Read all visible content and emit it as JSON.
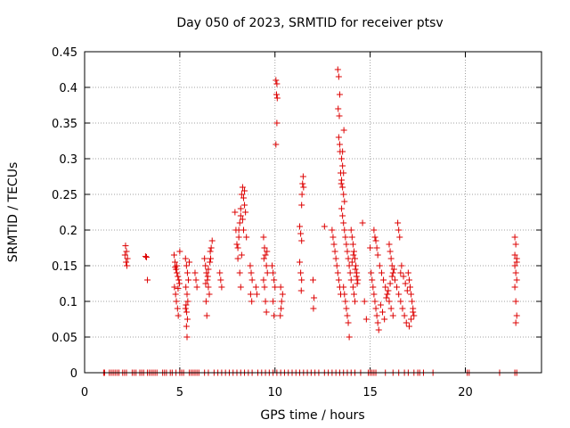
{
  "chart_data": {
    "type": "scatter",
    "title": "Day 050 of 2023, SRMTID for receiver ptsv",
    "xlabel": "GPS time / hours",
    "ylabel": "SRMTID / TECUs",
    "xlim": [
      0,
      24
    ],
    "ylim": [
      0,
      0.45
    ],
    "xticks": [
      0,
      5,
      10,
      15,
      20
    ],
    "xtick_labels": [
      "0",
      "5",
      "10",
      "15",
      "20"
    ],
    "yticks": [
      0,
      0.05,
      0.1,
      0.15,
      0.2,
      0.25,
      0.3,
      0.35,
      0.4,
      0.45
    ],
    "ytick_labels": [
      "0",
      "0.05",
      "0.1",
      "0.15",
      "0.2",
      "0.25",
      "0.3",
      "0.35",
      "0.4",
      "0.45"
    ],
    "grid": true,
    "marker": "+",
    "series": [
      {
        "color": "#dd0000",
        "points": [
          [
            2.15,
            0.178
          ],
          [
            2.2,
            0.17
          ],
          [
            2.18,
            0.155
          ],
          [
            2.22,
            0.15
          ],
          [
            2.25,
            0.16
          ],
          [
            2.12,
            0.165
          ],
          [
            3.25,
            0.162
          ],
          [
            3.3,
            0.13
          ],
          [
            3.2,
            0.163
          ],
          [
            4.7,
            0.165
          ],
          [
            4.75,
            0.155
          ],
          [
            4.8,
            0.145
          ],
          [
            4.85,
            0.14
          ],
          [
            4.9,
            0.135
          ],
          [
            4.95,
            0.13
          ],
          [
            4.72,
            0.12
          ],
          [
            4.78,
            0.11
          ],
          [
            4.82,
            0.1
          ],
          [
            4.88,
            0.09
          ],
          [
            4.92,
            0.08
          ],
          [
            4.98,
            0.125
          ],
          [
            5.0,
            0.17
          ],
          [
            4.84,
            0.15
          ],
          [
            4.76,
            0.148
          ],
          [
            4.91,
            0.118
          ],
          [
            5.3,
            0.16
          ],
          [
            5.35,
            0.15
          ],
          [
            5.4,
            0.14
          ],
          [
            5.32,
            0.12
          ],
          [
            5.38,
            0.11
          ],
          [
            5.42,
            0.1
          ],
          [
            5.3,
            0.09
          ],
          [
            5.36,
            0.085
          ],
          [
            5.4,
            0.075
          ],
          [
            5.35,
            0.065
          ],
          [
            5.38,
            0.05
          ],
          [
            5.45,
            0.13
          ],
          [
            5.5,
            0.155
          ],
          [
            5.33,
            0.095
          ],
          [
            5.8,
            0.14
          ],
          [
            5.85,
            0.13
          ],
          [
            5.9,
            0.12
          ],
          [
            6.3,
            0.16
          ],
          [
            6.35,
            0.15
          ],
          [
            6.4,
            0.14
          ],
          [
            6.45,
            0.13
          ],
          [
            6.5,
            0.12
          ],
          [
            6.55,
            0.11
          ],
          [
            6.6,
            0.17
          ],
          [
            6.65,
            0.175
          ],
          [
            6.7,
            0.185
          ],
          [
            6.38,
            0.1
          ],
          [
            6.42,
            0.08
          ],
          [
            6.5,
            0.145
          ],
          [
            6.58,
            0.155
          ],
          [
            6.62,
            0.16
          ],
          [
            6.36,
            0.125
          ],
          [
            6.47,
            0.135
          ],
          [
            7.1,
            0.14
          ],
          [
            7.15,
            0.13
          ],
          [
            7.2,
            0.12
          ],
          [
            7.9,
            0.225
          ],
          [
            7.95,
            0.2
          ],
          [
            8.0,
            0.18
          ],
          [
            8.05,
            0.175
          ],
          [
            8.1,
            0.19
          ],
          [
            8.15,
            0.21
          ],
          [
            8.2,
            0.23
          ],
          [
            8.25,
            0.25
          ],
          [
            8.3,
            0.26
          ],
          [
            8.35,
            0.245
          ],
          [
            8.4,
            0.235
          ],
          [
            8.2,
            0.22
          ],
          [
            8.1,
            0.2
          ],
          [
            8.05,
            0.16
          ],
          [
            8.15,
            0.14
          ],
          [
            8.2,
            0.12
          ],
          [
            8.3,
            0.215
          ],
          [
            8.35,
            0.2
          ],
          [
            8.4,
            0.255
          ],
          [
            8.45,
            0.225
          ],
          [
            8.5,
            0.19
          ],
          [
            8.25,
            0.165
          ],
          [
            8.7,
            0.15
          ],
          [
            8.75,
            0.14
          ],
          [
            8.8,
            0.13
          ],
          [
            8.72,
            0.11
          ],
          [
            8.78,
            0.1
          ],
          [
            9.0,
            0.12
          ],
          [
            9.05,
            0.11
          ],
          [
            9.4,
            0.19
          ],
          [
            9.45,
            0.175
          ],
          [
            9.5,
            0.165
          ],
          [
            9.55,
            0.15
          ],
          [
            9.6,
            0.14
          ],
          [
            9.4,
            0.13
          ],
          [
            9.45,
            0.12
          ],
          [
            9.5,
            0.1
          ],
          [
            9.55,
            0.085
          ],
          [
            9.42,
            0.16
          ],
          [
            9.58,
            0.17
          ],
          [
            9.85,
            0.15
          ],
          [
            9.9,
            0.14
          ],
          [
            9.95,
            0.13
          ],
          [
            10.0,
            0.12
          ],
          [
            9.9,
            0.1
          ],
          [
            9.95,
            0.08
          ],
          [
            10.05,
            0.41
          ],
          [
            10.1,
            0.405
          ],
          [
            10.08,
            0.39
          ],
          [
            10.12,
            0.385
          ],
          [
            10.1,
            0.35
          ],
          [
            10.05,
            0.32
          ],
          [
            10.3,
            0.12
          ],
          [
            10.35,
            0.1
          ],
          [
            10.32,
            0.09
          ],
          [
            10.28,
            0.08
          ],
          [
            10.4,
            0.11
          ],
          [
            11.3,
            0.205
          ],
          [
            11.35,
            0.195
          ],
          [
            11.4,
            0.185
          ],
          [
            11.3,
            0.155
          ],
          [
            11.35,
            0.14
          ],
          [
            11.4,
            0.13
          ],
          [
            11.45,
            0.265
          ],
          [
            11.5,
            0.26
          ],
          [
            11.48,
            0.275
          ],
          [
            11.42,
            0.25
          ],
          [
            11.4,
            0.235
          ],
          [
            11.38,
            0.115
          ],
          [
            12.0,
            0.13
          ],
          [
            12.05,
            0.105
          ],
          [
            12.02,
            0.09
          ],
          [
            12.6,
            0.205
          ],
          [
            13.0,
            0.2
          ],
          [
            13.05,
            0.19
          ],
          [
            13.1,
            0.18
          ],
          [
            13.15,
            0.17
          ],
          [
            13.2,
            0.16
          ],
          [
            13.25,
            0.15
          ],
          [
            13.3,
            0.14
          ],
          [
            13.35,
            0.13
          ],
          [
            13.4,
            0.12
          ],
          [
            13.45,
            0.11
          ],
          [
            13.3,
            0.425
          ],
          [
            13.35,
            0.415
          ],
          [
            13.4,
            0.39
          ],
          [
            13.32,
            0.37
          ],
          [
            13.38,
            0.36
          ],
          [
            13.35,
            0.33
          ],
          [
            13.4,
            0.32
          ],
          [
            13.42,
            0.31
          ],
          [
            13.5,
            0.3
          ],
          [
            13.55,
            0.29
          ],
          [
            13.45,
            0.28
          ],
          [
            13.5,
            0.27
          ],
          [
            13.55,
            0.26
          ],
          [
            13.6,
            0.25
          ],
          [
            13.65,
            0.24
          ],
          [
            13.5,
            0.23
          ],
          [
            13.55,
            0.22
          ],
          [
            13.6,
            0.21
          ],
          [
            13.65,
            0.2
          ],
          [
            13.7,
            0.19
          ],
          [
            13.75,
            0.18
          ],
          [
            13.8,
            0.17
          ],
          [
            13.85,
            0.16
          ],
          [
            13.9,
            0.15
          ],
          [
            13.95,
            0.14
          ],
          [
            14.0,
            0.13
          ],
          [
            13.6,
            0.12
          ],
          [
            13.65,
            0.11
          ],
          [
            13.7,
            0.1
          ],
          [
            13.75,
            0.09
          ],
          [
            13.8,
            0.08
          ],
          [
            13.85,
            0.07
          ],
          [
            13.9,
            0.05
          ],
          [
            13.55,
            0.31
          ],
          [
            13.6,
            0.28
          ],
          [
            13.48,
            0.265
          ],
          [
            13.62,
            0.34
          ],
          [
            14.0,
            0.2
          ],
          [
            14.05,
            0.19
          ],
          [
            14.1,
            0.18
          ],
          [
            14.15,
            0.17
          ],
          [
            14.2,
            0.16
          ],
          [
            14.25,
            0.15
          ],
          [
            14.3,
            0.14
          ],
          [
            14.35,
            0.13
          ],
          [
            14.1,
            0.12
          ],
          [
            14.15,
            0.11
          ],
          [
            14.2,
            0.1
          ],
          [
            14.05,
            0.155
          ],
          [
            14.12,
            0.165
          ],
          [
            14.22,
            0.145
          ],
          [
            14.28,
            0.135
          ],
          [
            14.32,
            0.125
          ],
          [
            14.6,
            0.21
          ],
          [
            14.7,
            0.1
          ],
          [
            14.8,
            0.075
          ],
          [
            15.0,
            0.175
          ],
          [
            15.05,
            0.14
          ],
          [
            15.1,
            0.13
          ],
          [
            15.15,
            0.12
          ],
          [
            15.2,
            0.11
          ],
          [
            15.25,
            0.1
          ],
          [
            15.3,
            0.09
          ],
          [
            15.35,
            0.08
          ],
          [
            15.4,
            0.07
          ],
          [
            15.45,
            0.06
          ],
          [
            15.2,
            0.2
          ],
          [
            15.25,
            0.19
          ],
          [
            15.3,
            0.185
          ],
          [
            15.35,
            0.175
          ],
          [
            15.4,
            0.165
          ],
          [
            15.5,
            0.15
          ],
          [
            15.6,
            0.14
          ],
          [
            15.7,
            0.13
          ],
          [
            15.8,
            0.12
          ],
          [
            15.9,
            0.11
          ],
          [
            16.0,
            0.1
          ],
          [
            16.1,
            0.09
          ],
          [
            16.2,
            0.08
          ],
          [
            15.55,
            0.095
          ],
          [
            15.65,
            0.085
          ],
          [
            15.75,
            0.075
          ],
          [
            15.85,
            0.105
          ],
          [
            15.95,
            0.115
          ],
          [
            16.05,
            0.125
          ],
          [
            16.15,
            0.135
          ],
          [
            16.25,
            0.145
          ],
          [
            16.0,
            0.18
          ],
          [
            16.05,
            0.17
          ],
          [
            16.1,
            0.16
          ],
          [
            16.15,
            0.15
          ],
          [
            16.2,
            0.14
          ],
          [
            16.3,
            0.13
          ],
          [
            16.4,
            0.12
          ],
          [
            16.5,
            0.11
          ],
          [
            16.6,
            0.1
          ],
          [
            16.7,
            0.09
          ],
          [
            16.8,
            0.08
          ],
          [
            16.9,
            0.07
          ],
          [
            16.45,
            0.21
          ],
          [
            16.5,
            0.2
          ],
          [
            16.55,
            0.19
          ],
          [
            16.6,
            0.14
          ],
          [
            16.65,
            0.15
          ],
          [
            16.75,
            0.135
          ],
          [
            16.85,
            0.125
          ],
          [
            16.95,
            0.115
          ],
          [
            17.0,
            0.14
          ],
          [
            17.05,
            0.13
          ],
          [
            17.1,
            0.12
          ],
          [
            17.15,
            0.11
          ],
          [
            17.2,
            0.1
          ],
          [
            17.25,
            0.09
          ],
          [
            17.3,
            0.08
          ],
          [
            17.05,
            0.065
          ],
          [
            17.15,
            0.075
          ],
          [
            17.25,
            0.085
          ],
          [
            22.6,
            0.19
          ],
          [
            22.65,
            0.18
          ],
          [
            22.7,
            0.16
          ],
          [
            22.6,
            0.15
          ],
          [
            22.65,
            0.14
          ],
          [
            22.7,
            0.13
          ],
          [
            22.6,
            0.12
          ],
          [
            22.65,
            0.1
          ],
          [
            22.7,
            0.08
          ],
          [
            22.65,
            0.07
          ],
          [
            22.6,
            0.165
          ],
          [
            22.7,
            0.155
          ]
        ]
      }
    ],
    "zero_points_x": [
      1.0,
      1.05,
      1.3,
      1.4,
      1.5,
      1.6,
      1.7,
      1.8,
      2.0,
      2.1,
      2.2,
      2.5,
      2.6,
      2.7,
      2.9,
      3.0,
      3.1,
      3.3,
      3.4,
      3.5,
      3.6,
      3.7,
      3.8,
      4.1,
      4.2,
      4.3,
      4.5,
      4.6,
      4.8,
      5.0,
      5.1,
      5.2,
      5.5,
      5.6,
      5.7,
      5.8,
      5.9,
      6.0,
      6.3,
      6.5,
      6.8,
      7.0,
      7.2,
      7.4,
      7.6,
      7.8,
      8.0,
      8.2,
      8.4,
      8.6,
      8.8,
      9.1,
      9.3,
      9.5,
      9.7,
      9.9,
      10.1,
      10.3,
      10.5,
      10.7,
      10.9,
      11.1,
      11.3,
      11.5,
      11.7,
      11.9,
      12.1,
      12.3,
      12.6,
      12.8,
      13.0,
      13.2,
      13.4,
      13.6,
      13.8,
      14.0,
      14.2,
      14.5,
      14.9,
      15.0,
      15.1,
      15.2,
      15.3,
      15.8,
      16.2,
      16.5,
      16.8,
      17.0,
      17.3,
      17.5,
      17.6,
      17.8,
      18.3,
      20.1,
      20.2,
      21.8,
      22.6,
      22.7
    ]
  }
}
